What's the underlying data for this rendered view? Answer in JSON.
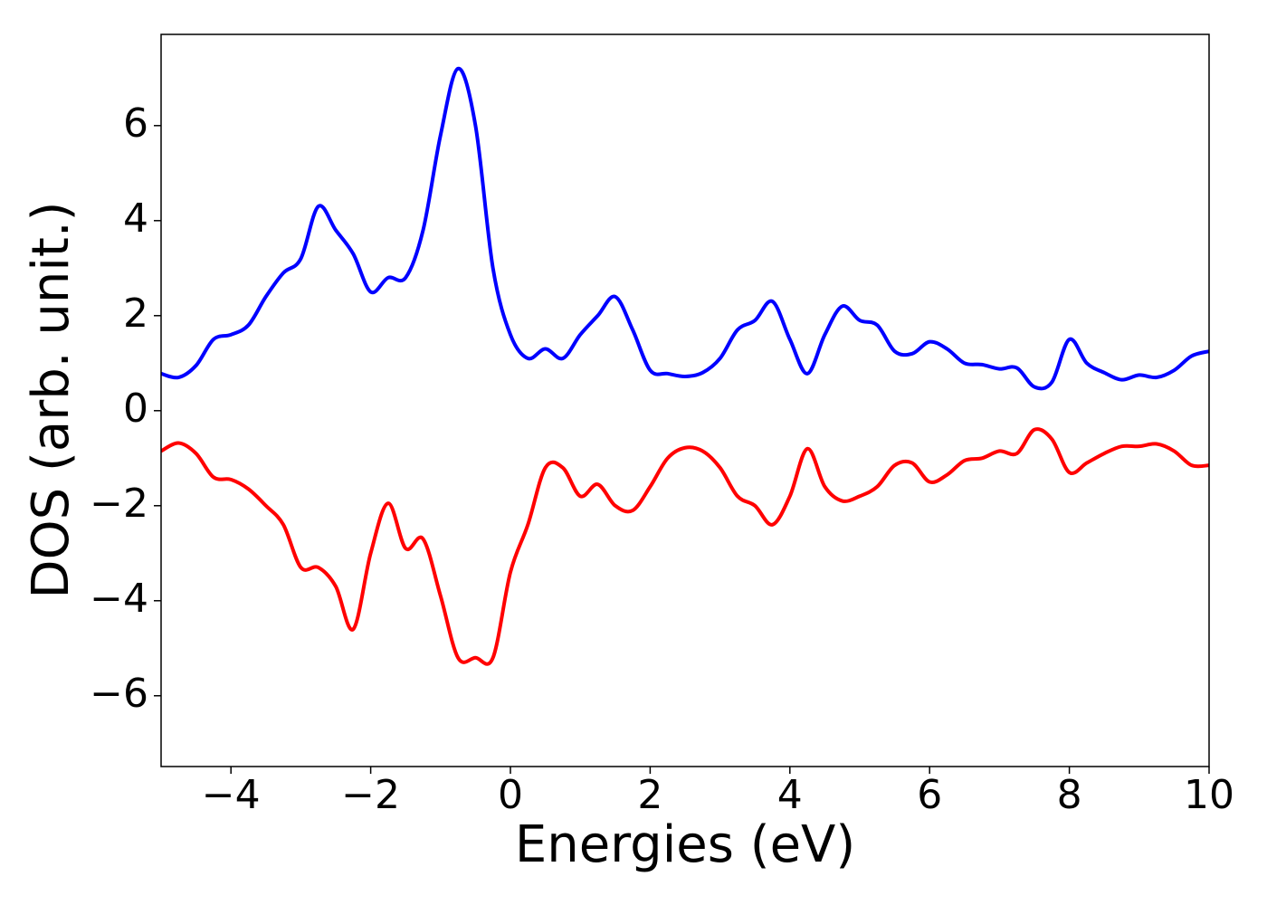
{
  "chart_data": {
    "type": "line",
    "xlabel": "Energies (eV)",
    "ylabel": "DOS (arb. unit.)",
    "x": [
      -5,
      -4.75,
      -4.5,
      -4.25,
      -4,
      -3.75,
      -3.5,
      -3.25,
      -3,
      -2.75,
      -2.5,
      -2.25,
      -2,
      -1.75,
      -1.5,
      -1.25,
      -1,
      -0.75,
      -0.5,
      -0.25,
      0,
      0.25,
      0.5,
      0.75,
      1,
      1.25,
      1.5,
      1.75,
      2,
      2.25,
      2.5,
      2.75,
      3,
      3.25,
      3.5,
      3.75,
      4,
      4.25,
      4.5,
      4.75,
      5,
      5.25,
      5.5,
      5.75,
      6,
      6.25,
      6.5,
      6.75,
      7,
      7.25,
      7.5,
      7.75,
      8,
      8.25,
      8.5,
      8.75,
      9,
      9.25,
      9.5,
      9.75,
      10
    ],
    "series": [
      {
        "color": "#0000ff",
        "values": [
          0.78,
          0.7,
          0.95,
          1.5,
          1.6,
          1.8,
          2.4,
          2.9,
          3.2,
          4.3,
          3.8,
          3.3,
          2.5,
          2.8,
          2.8,
          3.8,
          5.8,
          7.2,
          6.0,
          3.0,
          1.6,
          1.1,
          1.3,
          1.1,
          1.6,
          2.0,
          2.4,
          1.7,
          0.85,
          0.78,
          0.72,
          0.8,
          1.1,
          1.7,
          1.9,
          2.3,
          1.5,
          0.78,
          1.6,
          2.2,
          1.9,
          1.8,
          1.25,
          1.2,
          1.45,
          1.3,
          1.0,
          0.97,
          0.88,
          0.9,
          0.5,
          0.6,
          1.5,
          1.0,
          0.8,
          0.65,
          0.75,
          0.7,
          0.85,
          1.15,
          1.25
        ]
      },
      {
        "color": "#ff0000",
        "values": [
          -0.85,
          -0.68,
          -0.9,
          -1.4,
          -1.45,
          -1.65,
          -2.0,
          -2.4,
          -3.3,
          -3.3,
          -3.7,
          -4.6,
          -3.0,
          -1.95,
          -2.9,
          -2.7,
          -3.9,
          -5.2,
          -5.2,
          -5.2,
          -3.4,
          -2.4,
          -1.2,
          -1.2,
          -1.8,
          -1.55,
          -2.0,
          -2.1,
          -1.6,
          -1.0,
          -0.78,
          -0.85,
          -1.2,
          -1.8,
          -2.0,
          -2.4,
          -1.8,
          -0.8,
          -1.6,
          -1.9,
          -1.8,
          -1.6,
          -1.15,
          -1.1,
          -1.5,
          -1.35,
          -1.05,
          -1.0,
          -0.85,
          -0.9,
          -0.4,
          -0.6,
          -1.3,
          -1.1,
          -0.9,
          -0.75,
          -0.75,
          -0.7,
          -0.85,
          -1.15,
          -1.15
        ]
      }
    ],
    "xlim": [
      -5,
      10
    ],
    "xticks": [
      {
        "value": -4,
        "label": "−4"
      },
      {
        "value": -2,
        "label": "−2"
      },
      0,
      2,
      4,
      6,
      8,
      10
    ],
    "ylim": [
      -7.49,
      7.92
    ],
    "yticks": [
      {
        "value": -6,
        "label": "−6"
      },
      {
        "value": -4,
        "label": "−4"
      },
      {
        "value": -2,
        "label": "−2"
      },
      0,
      2,
      4,
      6
    ],
    "grid": false
  }
}
